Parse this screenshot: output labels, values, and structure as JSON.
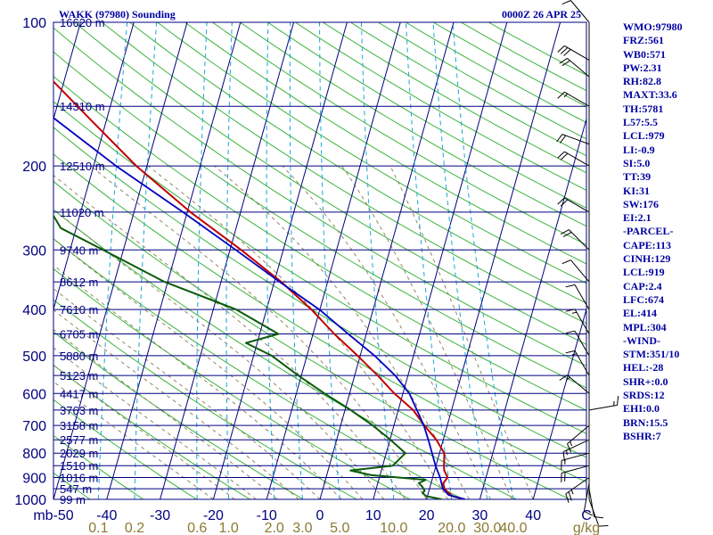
{
  "header": {
    "station": "WAKK (97980) Sounding",
    "time": "0000Z 26 APR 25"
  },
  "indices": [
    "WMO:97980",
    "FRZ:561",
    "WB0:571",
    "PW:2.31",
    "RH:82.8",
    "MAXT:33.6",
    "TH:5781",
    "L57:5.5",
    "LCL:979",
    "LI:-0.9",
    "SI:5.0",
    "TT:39",
    "KI:31",
    "SW:176",
    "EI:2.1",
    "-PARCEL-",
    "CAPE:113",
    "CINH:129",
    "LCL:919",
    "CAP:2.4",
    "LFC:674",
    "EL:414",
    "MPL:304",
    "-WIND-",
    "STM:351/10",
    "HEL:-28",
    "SHR+:0.0",
    "SRDS:12",
    "EHI:0.0",
    "BRN:15.5",
    "BSHR:7"
  ],
  "colors": {
    "text": "#0000a0",
    "isobar": "#000080",
    "isotherm": "#000080",
    "dry_adiabat": "#3db43d",
    "moist_adiabat": "#8a7a52",
    "mixing_ratio": "#1aa7d6",
    "temperature": "#c00000",
    "dewpoint": "#0a5a0a",
    "parcel": "#0000c0",
    "mixing_ratio_label": "#8a7a30"
  },
  "chart_data": {
    "type": "line",
    "subtype": "skew-T log-P sounding",
    "x_axis": {
      "label": "C",
      "min": -50,
      "max": 50,
      "ticks": [
        -50,
        -40,
        -30,
        -20,
        -10,
        0,
        10,
        20,
        30,
        40
      ]
    },
    "x_tick_text": {
      "-50": "mb-50",
      "-40": "-40",
      "-30": "-30",
      "-20": "-20",
      "-10": "-10",
      "0": "0",
      "10": "10",
      "20": "20",
      "30": "30",
      "40": "40"
    },
    "y_axis": {
      "scale": "log",
      "pressure_top": 100,
      "pressure_bottom": 1000,
      "ticks": [
        100,
        200,
        300,
        400,
        500,
        600,
        700,
        800,
        900,
        1000
      ]
    },
    "mixing_ratio_axis": {
      "unit": "g/kg",
      "ticks": [
        0.1,
        0.2,
        0.6,
        1.0,
        2.0,
        3.0,
        5.0,
        10.0,
        20.0,
        30.0,
        40.0
      ]
    },
    "mixing_ratio_tick_text": [
      "0.1",
      "0.2",
      "0.6",
      "1.0",
      "2.0",
      "3.0",
      "5.0",
      "10.0",
      "20.0",
      "30.0",
      "40.0"
    ],
    "heights": [
      {
        "p": 100,
        "label": "16620 m"
      },
      {
        "p": 150,
        "label": "14310 m"
      },
      {
        "p": 200,
        "label": "12510 m"
      },
      {
        "p": 250,
        "label": "11020 m"
      },
      {
        "p": 300,
        "label": "9740 m"
      },
      {
        "p": 350,
        "label": "8612 m"
      },
      {
        "p": 400,
        "label": "7610 m"
      },
      {
        "p": 450,
        "label": "6705 m"
      },
      {
        "p": 500,
        "label": "5880 m"
      },
      {
        "p": 550,
        "label": "5123 m"
      },
      {
        "p": 600,
        "label": "4417 m"
      },
      {
        "p": 650,
        "label": "3763 m"
      },
      {
        "p": 700,
        "label": "3158 m"
      },
      {
        "p": 750,
        "label": "2577 m"
      },
      {
        "p": 800,
        "label": "2029 m"
      },
      {
        "p": 850,
        "label": "1510 m"
      },
      {
        "p": 900,
        "label": "1016 m"
      },
      {
        "p": 950,
        "label": "547 m"
      },
      {
        "p": 1000,
        "label": "99 m"
      }
    ],
    "series": [
      {
        "key": "temperature",
        "points": [
          [
            1000,
            27.2
          ],
          [
            985,
            24.7
          ],
          [
            960,
            23.3
          ],
          [
            950,
            22.8
          ],
          [
            925,
            22.3
          ],
          [
            900,
            22.8
          ],
          [
            870,
            21.8
          ],
          [
            850,
            21.5
          ],
          [
            800,
            20.9
          ],
          [
            750,
            18.7
          ],
          [
            700,
            15.7
          ],
          [
            650,
            12.8
          ],
          [
            600,
            8.4
          ],
          [
            550,
            4.3
          ],
          [
            500,
            -0.5
          ],
          [
            450,
            -6.0
          ],
          [
            400,
            -11.6
          ],
          [
            350,
            -18.7
          ],
          [
            300,
            -27.9
          ],
          [
            250,
            -39.4
          ],
          [
            200,
            -52.0
          ],
          [
            160,
            -63.0
          ],
          [
            120,
            -77.0
          ],
          [
            100,
            -81.0
          ]
        ]
      },
      {
        "key": "dewpoint",
        "points": [
          [
            1000,
            22.9
          ],
          [
            985,
            19.8
          ],
          [
            970,
            18.9
          ],
          [
            960,
            19.2
          ],
          [
            940,
            18.5
          ],
          [
            925,
            17.7
          ],
          [
            910,
            18.8
          ],
          [
            890,
            8.4
          ],
          [
            870,
            4.2
          ],
          [
            850,
            11.9
          ],
          [
            800,
            13.6
          ],
          [
            750,
            10.1
          ],
          [
            700,
            6.0
          ],
          [
            650,
            1.1
          ],
          [
            600,
            -4.7
          ],
          [
            550,
            -10.6
          ],
          [
            500,
            -16.6
          ],
          [
            470,
            -22.1
          ],
          [
            450,
            -16.5
          ],
          [
            400,
            -25.7
          ],
          [
            350,
            -40.6
          ],
          [
            300,
            -53.8
          ],
          [
            270,
            -62.9
          ],
          [
            250,
            -65.5
          ],
          [
            200,
            -79.5
          ],
          [
            160,
            -90.0
          ],
          [
            120,
            -101.0
          ],
          [
            100,
            -101.0
          ]
        ]
      },
      {
        "key": "parcel",
        "points": [
          [
            1000,
            27.2
          ],
          [
            979,
            23.9
          ],
          [
            950,
            22.5
          ],
          [
            900,
            21.4
          ],
          [
            850,
            19.9
          ],
          [
            800,
            18.6
          ],
          [
            750,
            17.2
          ],
          [
            700,
            15.6
          ],
          [
            650,
            13.5
          ],
          [
            600,
            11.2
          ],
          [
            550,
            7.6
          ],
          [
            500,
            2.7
          ],
          [
            450,
            -3.4
          ],
          [
            400,
            -10.1
          ],
          [
            350,
            -19.0
          ],
          [
            300,
            -28.9
          ],
          [
            250,
            -40.8
          ],
          [
            200,
            -55.8
          ],
          [
            150,
            -73.5
          ],
          [
            100,
            -91.5
          ]
        ]
      }
    ],
    "wind_barbs": [
      {
        "p": 1000,
        "dir": 160,
        "spd": 10
      },
      {
        "p": 950,
        "dir": 170,
        "spd": 10
      },
      {
        "p": 925,
        "dir": 190,
        "spd": 10
      },
      {
        "p": 900,
        "dir": 235,
        "spd": 25
      },
      {
        "p": 850,
        "dir": 255,
        "spd": 20
      },
      {
        "p": 800,
        "dir": 255,
        "spd": 15
      },
      {
        "p": 750,
        "dir": 245,
        "spd": 15
      },
      {
        "p": 700,
        "dir": 230,
        "spd": 15
      },
      {
        "p": 650,
        "dir": 80,
        "spd": 15
      },
      {
        "p": 600,
        "dir": 310,
        "spd": 15
      },
      {
        "p": 550,
        "dir": 330,
        "spd": 15
      },
      {
        "p": 500,
        "dir": 330,
        "spd": 10
      },
      {
        "p": 450,
        "dir": 330,
        "spd": 15
      },
      {
        "p": 400,
        "dir": 330,
        "spd": 10
      },
      {
        "p": 350,
        "dir": 320,
        "spd": 10
      },
      {
        "p": 300,
        "dir": 315,
        "spd": 20
      },
      {
        "p": 250,
        "dir": 300,
        "spd": 20
      },
      {
        "p": 200,
        "dir": 300,
        "spd": 20
      },
      {
        "p": 180,
        "dir": 290,
        "spd": 20
      },
      {
        "p": 150,
        "dir": 300,
        "spd": 15
      },
      {
        "p": 130,
        "dir": 310,
        "spd": 20
      },
      {
        "p": 120,
        "dir": 300,
        "spd": 30
      },
      {
        "p": 100,
        "dir": 320,
        "spd": 10
      }
    ]
  }
}
